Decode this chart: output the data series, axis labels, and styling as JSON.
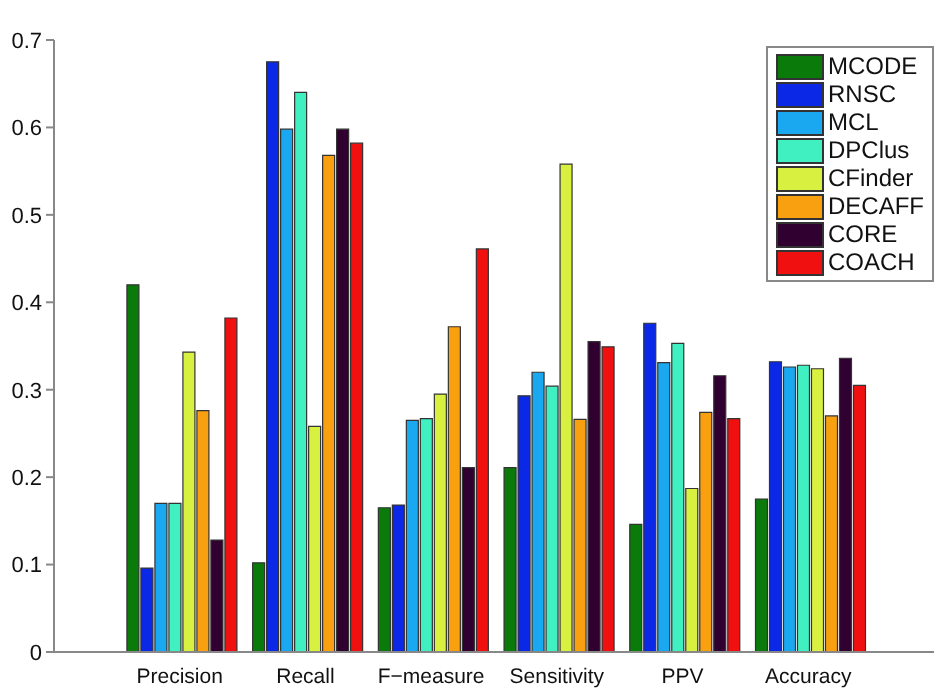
{
  "chart_data": {
    "type": "bar",
    "categories": [
      "Precision",
      "Recall",
      "F−measure",
      "Sensitivity",
      "PPV",
      "Accuracy"
    ],
    "series": [
      {
        "name": "MCODE",
        "color": "#0a7a0a",
        "values": [
          0.42,
          0.102,
          0.165,
          0.211,
          0.146,
          0.175
        ]
      },
      {
        "name": "RNSC",
        "color": "#0a28e6",
        "values": [
          0.096,
          0.675,
          0.168,
          0.293,
          0.376,
          0.332
        ]
      },
      {
        "name": "MCL",
        "color": "#1aa8f0",
        "values": [
          0.17,
          0.598,
          0.265,
          0.32,
          0.331,
          0.326
        ]
      },
      {
        "name": "DPClus",
        "color": "#40f0c0",
        "values": [
          0.17,
          0.64,
          0.267,
          0.304,
          0.353,
          0.328
        ]
      },
      {
        "name": "CFinder",
        "color": "#d8f040",
        "values": [
          0.343,
          0.258,
          0.295,
          0.558,
          0.187,
          0.324
        ]
      },
      {
        "name": "DECAFF",
        "color": "#f8a010",
        "values": [
          0.276,
          0.568,
          0.372,
          0.266,
          0.274,
          0.27
        ]
      },
      {
        "name": "CORE",
        "color": "#300030",
        "values": [
          0.128,
          0.598,
          0.211,
          0.355,
          0.316,
          0.336
        ]
      },
      {
        "name": "COACH",
        "color": "#f01010",
        "values": [
          0.382,
          0.582,
          0.461,
          0.349,
          0.267,
          0.305
        ]
      }
    ],
    "ylim": [
      0,
      0.7
    ],
    "yticks": [
      0,
      0.1,
      0.2,
      0.3,
      0.4,
      0.5,
      0.6,
      0.7
    ],
    "grid": false,
    "legend": "top right"
  }
}
